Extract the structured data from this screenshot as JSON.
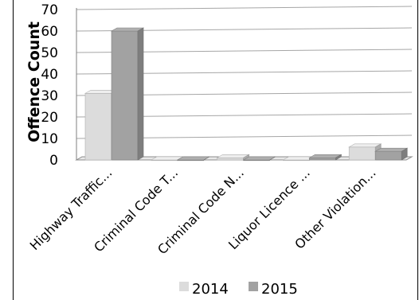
{
  "chart_data": {
    "type": "bar",
    "ylabel": "Offence Count",
    "xlabel": "",
    "ylim": [
      0,
      70
    ],
    "yticks": [
      0,
      10,
      20,
      30,
      40,
      50,
      60,
      70
    ],
    "grid": true,
    "legend_position": "bottom",
    "categories": [
      "Highway Traffic...",
      "Criminal Code T...",
      "Criminal Code N...",
      "Liquor Licence ...",
      "Other Violation..."
    ],
    "series": [
      {
        "name": "2014",
        "values": [
          31,
          0,
          1,
          0,
          6
        ],
        "color": "#dcdcdc"
      },
      {
        "name": "2015",
        "values": [
          60,
          0,
          0,
          1,
          4
        ],
        "color": "#a2a2a2"
      }
    ]
  }
}
